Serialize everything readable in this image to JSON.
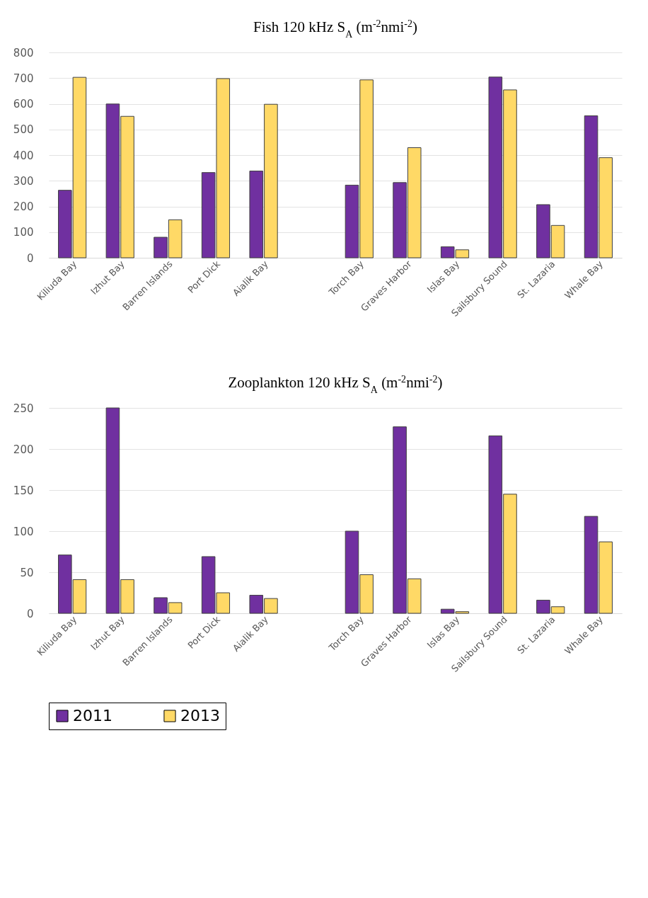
{
  "chart_data": [
    {
      "type": "bar",
      "title": "Fish 120 kHz S$_{A}$ (m$^{-2}$nmi$^{-2}$)",
      "categories": [
        "Kiliuda Bay",
        "Izhut Bay",
        "Barren Islands",
        "Port Dick",
        "Aialik Bay",
        null,
        "Torch Bay",
        "Graves Harbor",
        "Islas Bay",
        "Sailsbury Sound",
        "St. Lazaria",
        "Whale Bay"
      ],
      "series": [
        {
          "name": "2011",
          "color": "#7030a0",
          "values": [
            263,
            599,
            80,
            332,
            338,
            null,
            283,
            293,
            43,
            704,
            207,
            553
          ]
        },
        {
          "name": "2013",
          "color": "#ffd966",
          "values": [
            703,
            551,
            148,
            698,
            598,
            null,
            693,
            429,
            31,
            654,
            126,
            390
          ]
        }
      ],
      "ylim": [
        0,
        800
      ],
      "yticks": [
        0,
        100,
        200,
        300,
        400,
        500,
        600,
        700,
        800
      ],
      "grid": "y",
      "legend": "bottom"
    },
    {
      "type": "bar",
      "title": "Zooplankton 120 kHz S$_{A}$ (m$^{-2}$nmi$^{-2}$)",
      "categories": [
        "Kiliuda Bay",
        "Izhut Bay",
        "Barren Islands",
        "Port Dick",
        "Aialik Bay",
        null,
        "Torch Bay",
        "Graves Harbor",
        "Islas Bay",
        "Sailsbury Sound",
        "St. Lazaria",
        "Whale Bay"
      ],
      "series": [
        {
          "name": "2011",
          "color": "#7030a0",
          "values": [
            71,
            250,
            19,
            69,
            22,
            null,
            100,
            227,
            5,
            216,
            16,
            118
          ]
        },
        {
          "name": "2013",
          "color": "#ffd966",
          "values": [
            41,
            41,
            13,
            25,
            18,
            null,
            47,
            42,
            2,
            145,
            8,
            87
          ]
        }
      ],
      "ylim": [
        0,
        250
      ],
      "yticks": [
        0,
        50,
        100,
        150,
        200,
        250
      ],
      "grid": "y",
      "legend": "bottom"
    }
  ]
}
